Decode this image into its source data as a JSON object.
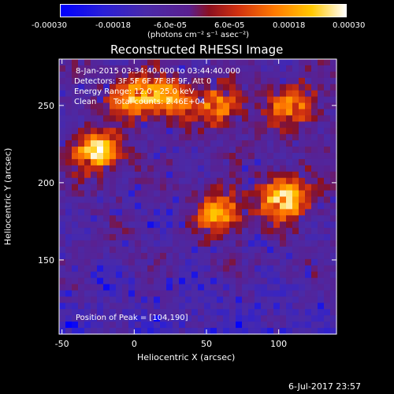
{
  "colorbar": {
    "ticks": [
      "-0.00030",
      "-0.00018",
      "-6.0e-05",
      "6.0e-05",
      "0.00018",
      "0.00030"
    ],
    "units_label": "(photons cm⁻² s⁻¹ asec⁻²)",
    "range": [
      -0.0003,
      0.0003
    ]
  },
  "info": {
    "time_range": "8-Jan-2015 03:34:40.000 to 03:44:40.000",
    "detectors": "Detectors: 3F 5F 6F 7F 8F 9F, Att 0",
    "energy_range": "Energy Range: 12.0 - 25.0 keV",
    "clean": "Clean",
    "total_counts": "Total counts: 2.46E+04",
    "peak_position": "Position of Peak = [104,190]"
  },
  "timestamp": "6-Jul-2017 23:57",
  "chart_data": {
    "type": "heatmap",
    "title": "Reconstructed RHESSI Image",
    "xlabel": "Heliocentric X (arcsec)",
    "ylabel": "Heliocentric Y (arcsec)",
    "xlim": [
      -52,
      140
    ],
    "ylim": [
      102,
      280
    ],
    "xticks": [
      -50,
      0,
      50,
      100
    ],
    "yticks": [
      150,
      200,
      250
    ],
    "peak": {
      "x": 104,
      "y": 190
    },
    "bright_regions": [
      {
        "x": -25,
        "y": 220,
        "level": 0.95
      },
      {
        "x": 0,
        "y": 255,
        "level": 0.75
      },
      {
        "x": 25,
        "y": 255,
        "level": 0.7
      },
      {
        "x": 60,
        "y": 250,
        "level": 0.65
      },
      {
        "x": 110,
        "y": 250,
        "level": 0.7
      },
      {
        "x": 104,
        "y": 190,
        "level": 1.0
      },
      {
        "x": 60,
        "y": 180,
        "level": 0.75
      }
    ]
  }
}
